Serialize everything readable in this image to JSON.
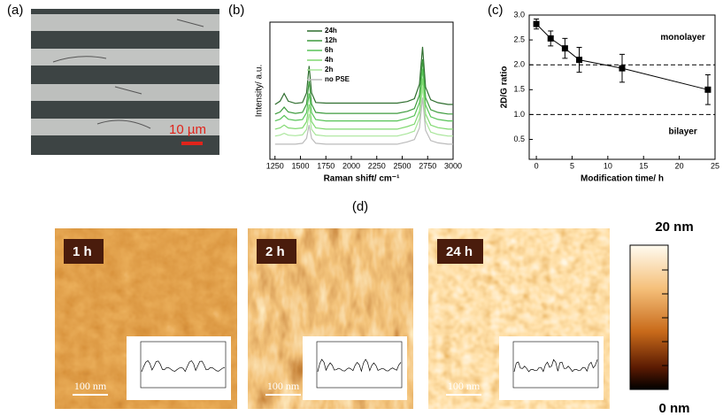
{
  "panel_a": {
    "label": "(a)",
    "scale_bar": "10 µm"
  },
  "chart_data": [
    {
      "type": "line",
      "panel_label": "(b)",
      "y_label": "Intensity/ a.u.",
      "x_label": "Raman shift/ cm⁻¹",
      "x": [
        1250,
        1300,
        1340,
        1380,
        1450,
        1520,
        1560,
        1585,
        1610,
        1650,
        1750,
        1900,
        2050,
        2200,
        2350,
        2450,
        2550,
        2620,
        2670,
        2700,
        2730,
        2780,
        2850,
        2950,
        3000
      ],
      "xlim": [
        1200,
        3000
      ],
      "xticks": [
        1250,
        1500,
        1750,
        2000,
        2250,
        2500,
        2750,
        3000
      ],
      "ylim": [
        0,
        100
      ],
      "series": [
        {
          "name": "24h",
          "color": "#2f6e2f",
          "values": [
            40,
            42.4,
            48,
            42.4,
            40.8,
            41.4,
            48.4,
            68,
            48.4,
            41.4,
            41,
            41,
            41,
            41,
            41,
            41,
            42.1,
            44.2,
            54.7,
            82,
            52.6,
            43.4,
            41.3,
            40,
            40
          ]
        },
        {
          "name": "12h",
          "color": "#3e9c3e",
          "values": [
            33,
            34.5,
            38,
            34.5,
            33.5,
            34.2,
            40.2,
            57,
            40.2,
            34.2,
            33.5,
            33.5,
            33.5,
            33.5,
            33.5,
            33.5,
            35,
            37,
            47,
            73,
            45,
            36.2,
            34.2,
            33,
            33
          ]
        },
        {
          "name": "6h",
          "color": "#58c458",
          "values": [
            28,
            29.2,
            32,
            29.2,
            28.4,
            29,
            34,
            48,
            34,
            29,
            28,
            28,
            28,
            28,
            28,
            28,
            29.9,
            31.8,
            41.3,
            66,
            39.4,
            31,
            29.1,
            28,
            28
          ]
        },
        {
          "name": "4h",
          "color": "#80d970",
          "values": [
            22,
            22.9,
            25,
            22.9,
            22.3,
            22.9,
            27.4,
            40,
            27.4,
            22.9,
            22,
            22,
            22,
            22,
            22,
            22,
            23.9,
            25.7,
            35,
            59,
            33.1,
            25,
            23.1,
            22,
            22
          ]
        },
        {
          "name": "2h",
          "color": "#a9e69b",
          "values": [
            17,
            17.6,
            19,
            17.6,
            17.2,
            17.8,
            21.8,
            33,
            21.8,
            17.8,
            17,
            17,
            17,
            17,
            17,
            17,
            18.8,
            20.6,
            29.6,
            53,
            27.8,
            19.9,
            18.1,
            17,
            17
          ]
        },
        {
          "name": "no PSE",
          "color": "#bbbbbb",
          "values": [
            11,
            11,
            11,
            11,
            11,
            11.7,
            15.2,
            25,
            15.2,
            11.7,
            11,
            11,
            11,
            11,
            11,
            11,
            12.7,
            14.4,
            22.9,
            45,
            21.2,
            13.7,
            12,
            11,
            11
          ]
        }
      ]
    },
    {
      "type": "errorline",
      "panel_label": "(c)",
      "y_label": "2D/G ratio",
      "x_label": "Modification time/ h",
      "x": [
        0,
        2,
        4,
        6,
        12,
        24
      ],
      "xlim": [
        -1,
        25
      ],
      "xticks": [
        0,
        5,
        10,
        15,
        20,
        25
      ],
      "ylim": [
        0.1,
        3.0
      ],
      "yticks": [
        {
          "value": 0.5,
          "label": "0.5"
        },
        {
          "value": 1,
          "label": "1.0"
        },
        {
          "value": 1.5,
          "label": "1.5"
        },
        {
          "value": 2,
          "label": "2.0"
        },
        {
          "value": 2.5,
          "label": "2.5"
        },
        {
          "value": 3,
          "label": "3.0"
        }
      ],
      "reference_lines": [
        2,
        1
      ],
      "annotations": [
        {
          "text": "monolayer",
          "x": 20.5,
          "y": 2.55
        },
        {
          "text": "bilayer",
          "x": 20.5,
          "y": 0.65
        }
      ],
      "series": [
        {
          "color": "#000000",
          "values": [
            2.82,
            2.53,
            2.33,
            2.1,
            1.93,
            1.5
          ],
          "errors": [
            0.1,
            0.15,
            0.2,
            0.25,
            0.28,
            0.3
          ]
        }
      ]
    }
  ],
  "panel_d": {
    "label": "(d)",
    "images": [
      {
        "label": "1 h",
        "scale_bar": "100 nm"
      },
      {
        "label": "2 h",
        "scale_bar": "100 nm"
      },
      {
        "label": "24 h",
        "scale_bar": "100 nm"
      }
    ],
    "colorbar": {
      "max_label": "20 nm",
      "min_label": "0 nm"
    }
  }
}
